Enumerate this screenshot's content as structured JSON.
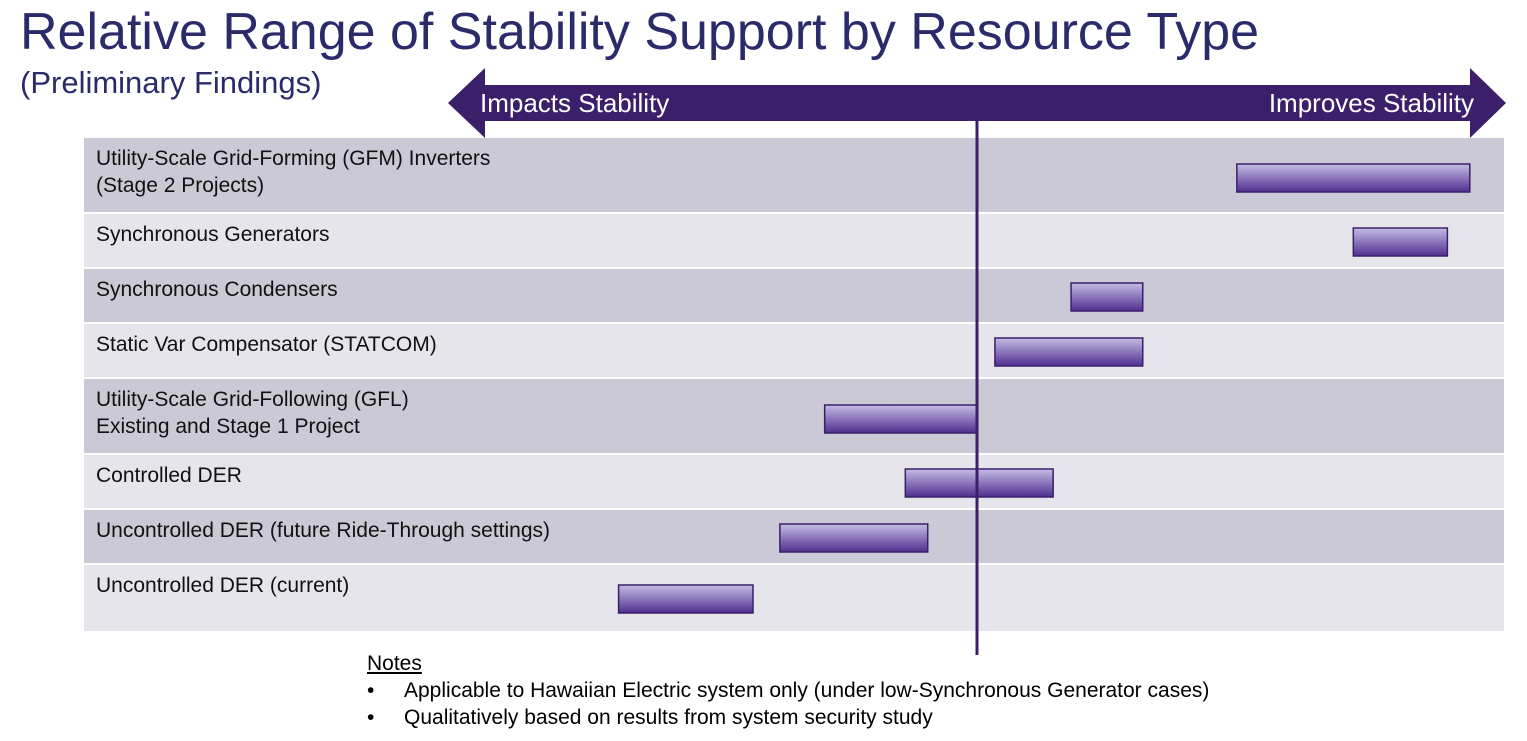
{
  "title": "Relative Range of Stability Support by Resource Type",
  "subtitle": "(Preliminary Findings)",
  "colors": {
    "title": "#2b2a6b",
    "arrow": "#3b1f6a",
    "row_dark": "#cac9d5",
    "row_light": "#e6e5ec",
    "bar_top": "#c5bce4",
    "bar_bottom": "#4f2f8f",
    "bar_border": "#3b1f6a",
    "divider": "#3b1f6a"
  },
  "arrow": {
    "left_label": "Impacts Stability",
    "right_label": "Improves Stability"
  },
  "chart_data": {
    "type": "range-bar",
    "scale": "qualitative",
    "orientation": "horizontal",
    "x_axis": {
      "min_label": "Impacts Stability",
      "max_label": "Improves Stability",
      "range": [
        -1,
        1
      ],
      "neutral": 0
    },
    "categories": [
      {
        "label_lines": [
          "Utility-Scale Grid-Forming (GFM) Inverters",
          "(Stage 2 Projects)"
        ],
        "range": [
          0.58,
          1.1
        ]
      },
      {
        "label_lines": [
          "Synchronous Generators"
        ],
        "range": [
          0.84,
          1.05
        ]
      },
      {
        "label_lines": [
          "Synchronous Condensers"
        ],
        "range": [
          0.21,
          0.37
        ]
      },
      {
        "label_lines": [
          "Static Var Compensator (STATCOM)"
        ],
        "range": [
          0.04,
          0.37
        ]
      },
      {
        "label_lines": [
          "Utility-Scale Grid-Following (GFL)",
          "Existing and Stage 1 Project"
        ],
        "range": [
          -0.34,
          0.0
        ]
      },
      {
        "label_lines": [
          "Controlled DER"
        ],
        "range": [
          -0.16,
          0.17
        ]
      },
      {
        "label_lines": [
          "Uncontrolled DER (future Ride-Through settings)"
        ],
        "range": [
          -0.44,
          -0.11
        ]
      },
      {
        "label_lines": [
          "Uncontrolled DER (current)"
        ],
        "range": [
          -0.8,
          -0.5
        ]
      }
    ]
  },
  "notes": {
    "heading": "Notes",
    "items": [
      "Applicable to Hawaiian Electric system only (under low-Synchronous Generator cases)",
      "Qualitatively based on results from system security study"
    ]
  }
}
